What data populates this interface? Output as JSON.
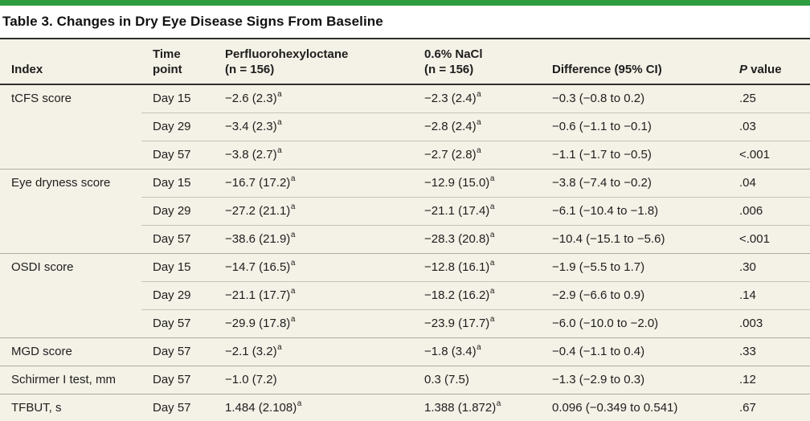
{
  "page": {
    "accent_bar_color": "#2e9d40",
    "title": "Table 3. Changes in Dry Eye Disease Signs From Baseline"
  },
  "table": {
    "header": {
      "index": "Index",
      "time_l1": "Time",
      "time_l2": "point",
      "drug_l1": "Perfluorohexyloctane",
      "drug_l2": "(n = 156)",
      "nacl_l1": "0.6% NaCl",
      "nacl_l2": "(n = 156)",
      "diff": "Difference (95% CI)",
      "p_italic": "P",
      "p_rest": " value"
    },
    "footnote_marker": "a",
    "rows": [
      {
        "index": "tCFS score",
        "time": "Day 15",
        "drug": "−2.6 (2.3)",
        "drug_sup": "a",
        "nacl": "−2.3 (2.4)",
        "nacl_sup": "a",
        "diff": "−0.3 (−0.8 to 0.2)",
        "p": ".25",
        "group_start": true
      },
      {
        "index": "",
        "time": "Day 29",
        "drug": "−3.4 (2.3)",
        "drug_sup": "a",
        "nacl": "−2.8 (2.4)",
        "nacl_sup": "a",
        "diff": "−0.6 (−1.1 to −0.1)",
        "p": ".03",
        "group_start": false
      },
      {
        "index": "",
        "time": "Day 57",
        "drug": "−3.8 (2.7)",
        "drug_sup": "a",
        "nacl": "−2.7 (2.8)",
        "nacl_sup": "a",
        "diff": "−1.1 (−1.7 to −0.5)",
        "p": "<.001",
        "group_start": false
      },
      {
        "index": "Eye dryness score",
        "time": "Day 15",
        "drug": "−16.7 (17.2)",
        "drug_sup": "a",
        "nacl": "−12.9 (15.0)",
        "nacl_sup": "a",
        "diff": "−3.8 (−7.4 to −0.2)",
        "p": ".04",
        "group_start": true
      },
      {
        "index": "",
        "time": "Day 29",
        "drug": "−27.2 (21.1)",
        "drug_sup": "a",
        "nacl": "−21.1 (17.4)",
        "nacl_sup": "a",
        "diff": "−6.1 (−10.4 to −1.8)",
        "p": ".006",
        "group_start": false
      },
      {
        "index": "",
        "time": "Day 57",
        "drug": "−38.6 (21.9)",
        "drug_sup": "a",
        "nacl": "−28.3 (20.8)",
        "nacl_sup": "a",
        "diff": "−10.4 (−15.1 to −5.6)",
        "p": "<.001",
        "group_start": false
      },
      {
        "index": "OSDI score",
        "time": "Day 15",
        "drug": "−14.7 (16.5)",
        "drug_sup": "a",
        "nacl": "−12.8 (16.1)",
        "nacl_sup": "a",
        "diff": "−1.9 (−5.5 to 1.7)",
        "p": ".30",
        "group_start": true
      },
      {
        "index": "",
        "time": "Day 29",
        "drug": "−21.1 (17.7)",
        "drug_sup": "a",
        "nacl": "−18.2 (16.2)",
        "nacl_sup": "a",
        "diff": "−2.9 (−6.6 to 0.9)",
        "p": ".14",
        "group_start": false
      },
      {
        "index": "",
        "time": "Day 57",
        "drug": "−29.9 (17.8)",
        "drug_sup": "a",
        "nacl": "−23.9 (17.7)",
        "nacl_sup": "a",
        "diff": "−6.0 (−10.0 to −2.0)",
        "p": ".003",
        "group_start": false
      },
      {
        "index": "MGD score",
        "time": "Day 57",
        "drug": "−2.1 (3.2)",
        "drug_sup": "a",
        "nacl": "−1.8 (3.4)",
        "nacl_sup": "a",
        "diff": "−0.4 (−1.1 to 0.4)",
        "p": ".33",
        "group_start": true
      },
      {
        "index": "Schirmer I test, mm",
        "time": "Day 57",
        "drug": "−1.0 (7.2)",
        "drug_sup": "",
        "nacl": "0.3 (7.5)",
        "nacl_sup": "",
        "diff": "−1.3 (−2.9 to 0.3)",
        "p": ".12",
        "group_start": true
      },
      {
        "index": "TFBUT, s",
        "time": "Day 57",
        "drug": "1.484 (2.108)",
        "drug_sup": "a",
        "nacl": "1.388 (1.872)",
        "nacl_sup": "a",
        "diff": "0.096 (−0.349 to 0.541)",
        "p": ".67",
        "group_start": true
      }
    ]
  }
}
